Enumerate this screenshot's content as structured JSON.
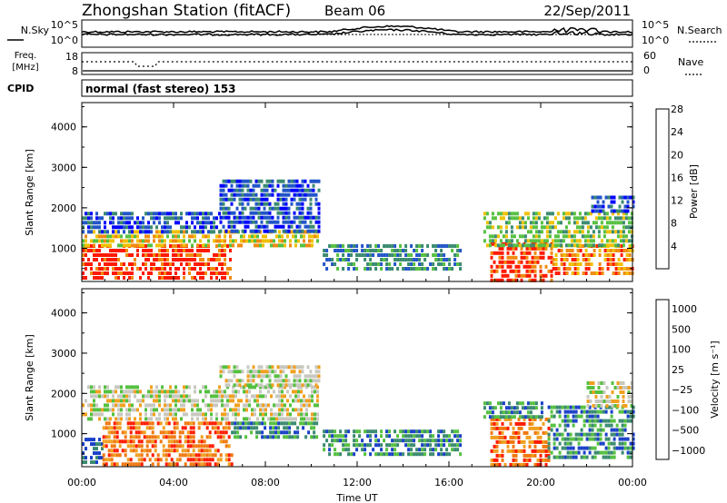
{
  "header": {
    "station": "Zhongshan Station (fitACF)",
    "beam": "Beam 06",
    "date": "22/Sep/2011"
  },
  "nsky_panel": {
    "left_label": "N.Sky",
    "right_label": "N.Search",
    "ticks_left": [
      "10^5",
      "10^0"
    ],
    "ticks_right": [
      "10^5",
      "10^0"
    ]
  },
  "freq_panel": {
    "left_label_top": "Freq.",
    "left_label_bottom": "[MHz]",
    "right_label": "Nave",
    "ticks_left": [
      "18",
      "8"
    ],
    "ticks_right": [
      "60",
      "0"
    ]
  },
  "cpid": {
    "label": "CPID",
    "mode": "normal (fast stereo) 153"
  },
  "xaxis": {
    "label": "Time UT",
    "ticks": [
      "00:00",
      "04:00",
      "08:00",
      "12:00",
      "16:00",
      "20:00",
      "00:00"
    ]
  },
  "chart_data": [
    {
      "type": "heatmap",
      "name": "power",
      "ylabel": "Slant Range [km]",
      "yticks": [
        "1000",
        "2000",
        "3000",
        "4000"
      ],
      "ylim": [
        180,
        4600
      ],
      "xlim_hours": [
        0,
        24
      ],
      "colorbar": {
        "label": "Power [dB]",
        "tick_labels": [
          "4",
          "8",
          "12",
          "16",
          "20",
          "24",
          "28"
        ],
        "colors": [
          "#0000ff",
          "#2255c8",
          "#3a8a70",
          "#55c040",
          "#f0c000",
          "#f08a10",
          "#ff1a00"
        ]
      },
      "regions": [
        {
          "t0": 0.0,
          "t1": 6.5,
          "r0": 250,
          "r1": 1100,
          "level": 6
        },
        {
          "t0": 0.0,
          "t1": 10.3,
          "r0": 1100,
          "r1": 1450,
          "level": 4
        },
        {
          "t0": 0.0,
          "t1": 6.0,
          "r0": 1450,
          "r1": 1900,
          "level": 1
        },
        {
          "t0": 6.0,
          "t1": 10.3,
          "r0": 1450,
          "r1": 2700,
          "level": 1
        },
        {
          "t0": 10.5,
          "t1": 16.5,
          "r0": 450,
          "r1": 1100,
          "level": 2
        },
        {
          "t0": 17.8,
          "t1": 20.5,
          "r0": 250,
          "r1": 1150,
          "level": 6
        },
        {
          "t0": 20.5,
          "t1": 24.0,
          "r0": 350,
          "r1": 1100,
          "level": 5
        },
        {
          "t0": 17.5,
          "t1": 24.0,
          "r0": 1100,
          "r1": 1900,
          "level": 3
        },
        {
          "t0": 22.2,
          "t1": 24.0,
          "r0": 1900,
          "r1": 2300,
          "level": 1
        }
      ]
    },
    {
      "type": "heatmap",
      "name": "velocity",
      "ylabel": "Slant Range [km]",
      "yticks": [
        "1000",
        "2000",
        "3000",
        "4000"
      ],
      "ylim": [
        180,
        4600
      ],
      "xlim_hours": [
        0,
        24
      ],
      "colorbar": {
        "label": "Velocity [m s⁻¹]",
        "tick_labels": [
          "1000",
          "500",
          "100",
          "25",
          "−25",
          "−100",
          "−500",
          "−1000"
        ],
        "colors": [
          "#1a40c8",
          "#3a8a70",
          "#55c040",
          "#c8c8c0",
          "#f0a020",
          "#f07810",
          "#ff1a00"
        ]
      },
      "regions": [
        {
          "t0": 0.0,
          "t1": 0.9,
          "r0": 250,
          "r1": 900,
          "level": 0
        },
        {
          "t0": 0.9,
          "t1": 6.5,
          "r0": 250,
          "r1": 1300,
          "level": 5
        },
        {
          "t0": 0.0,
          "t1": 10.3,
          "r0": 1300,
          "r1": 2200,
          "level": 3
        },
        {
          "t0": 6.0,
          "t1": 10.3,
          "r0": 2200,
          "r1": 2700,
          "level": 3
        },
        {
          "t0": 6.5,
          "t1": 10.3,
          "r0": 900,
          "r1": 1300,
          "level": 1
        },
        {
          "t0": 10.5,
          "t1": 16.5,
          "r0": 450,
          "r1": 1100,
          "level": 1
        },
        {
          "t0": 17.8,
          "t1": 20.3,
          "r0": 250,
          "r1": 1400,
          "level": 5
        },
        {
          "t0": 20.3,
          "t1": 24.0,
          "r0": 400,
          "r1": 1700,
          "level": 1
        },
        {
          "t0": 17.5,
          "t1": 20.0,
          "r0": 1400,
          "r1": 1800,
          "level": 1
        },
        {
          "t0": 22.0,
          "t1": 24.0,
          "r0": 1700,
          "r1": 2300,
          "level": 3
        }
      ]
    }
  ]
}
